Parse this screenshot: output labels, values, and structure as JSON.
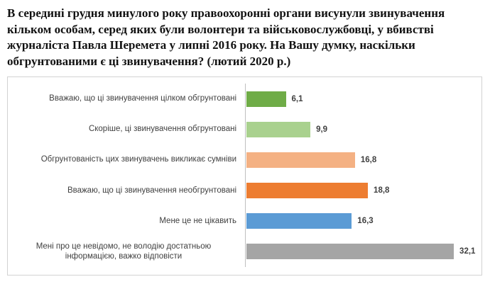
{
  "title": {
    "lines": [
      "В середині грудня минулого року правоохоронні органи висунули звинувачення",
      "кільком особам, серед яких були волонтери та військовослужбовці, у вбивстві",
      "журналіста Павла Шеремета у липні 2016 року. На Вашу думку, наскільки",
      "обгрунтованими є ці звинувачення? (лютий 2020 р.)"
    ]
  },
  "chart_data": {
    "type": "bar",
    "orientation": "horizontal",
    "title": "В середині грудня минулого року правоохоронні органи висунули звинувачення кільком особам, серед яких були волонтери та військовослужбовці, у вбивстві журналіста Павла Шеремета у липні 2016 року. На Вашу думку, наскільки обгрунтованими є ці звинувачення? (лютий 2020 р.)",
    "xlabel": "",
    "ylabel": "",
    "categories": [
      "Вважаю, що ці звинувачення цілком обгрунтовані",
      "Скоріше, ці звинувачення обгрунтовані",
      "Обгрунтованість цих звинувачень викликає сумніви",
      "Вважаю, що ці звинувачення необгрунтовані",
      "Мене це не цікавить",
      "Мені про це невідомо, не володію достатньою інформацією, важко відповісти"
    ],
    "values": [
      6.1,
      9.9,
      16.8,
      18.8,
      16.3,
      32.1
    ],
    "value_labels": [
      "6,1",
      "9,9",
      "16,8",
      "18,8",
      "16,3",
      "32,1"
    ],
    "bar_colors": [
      "#6fac47",
      "#a9d18e",
      "#f4b183",
      "#ed7d31",
      "#5b9bd5",
      "#a5a5a5"
    ],
    "xlim": [
      0,
      36.6
    ],
    "grid": false,
    "legend": false,
    "unit": "%",
    "data_label_color": "#404040",
    "axis_line_color": "#bfbfbf",
    "frame_border_color": "#d2d2d2"
  }
}
